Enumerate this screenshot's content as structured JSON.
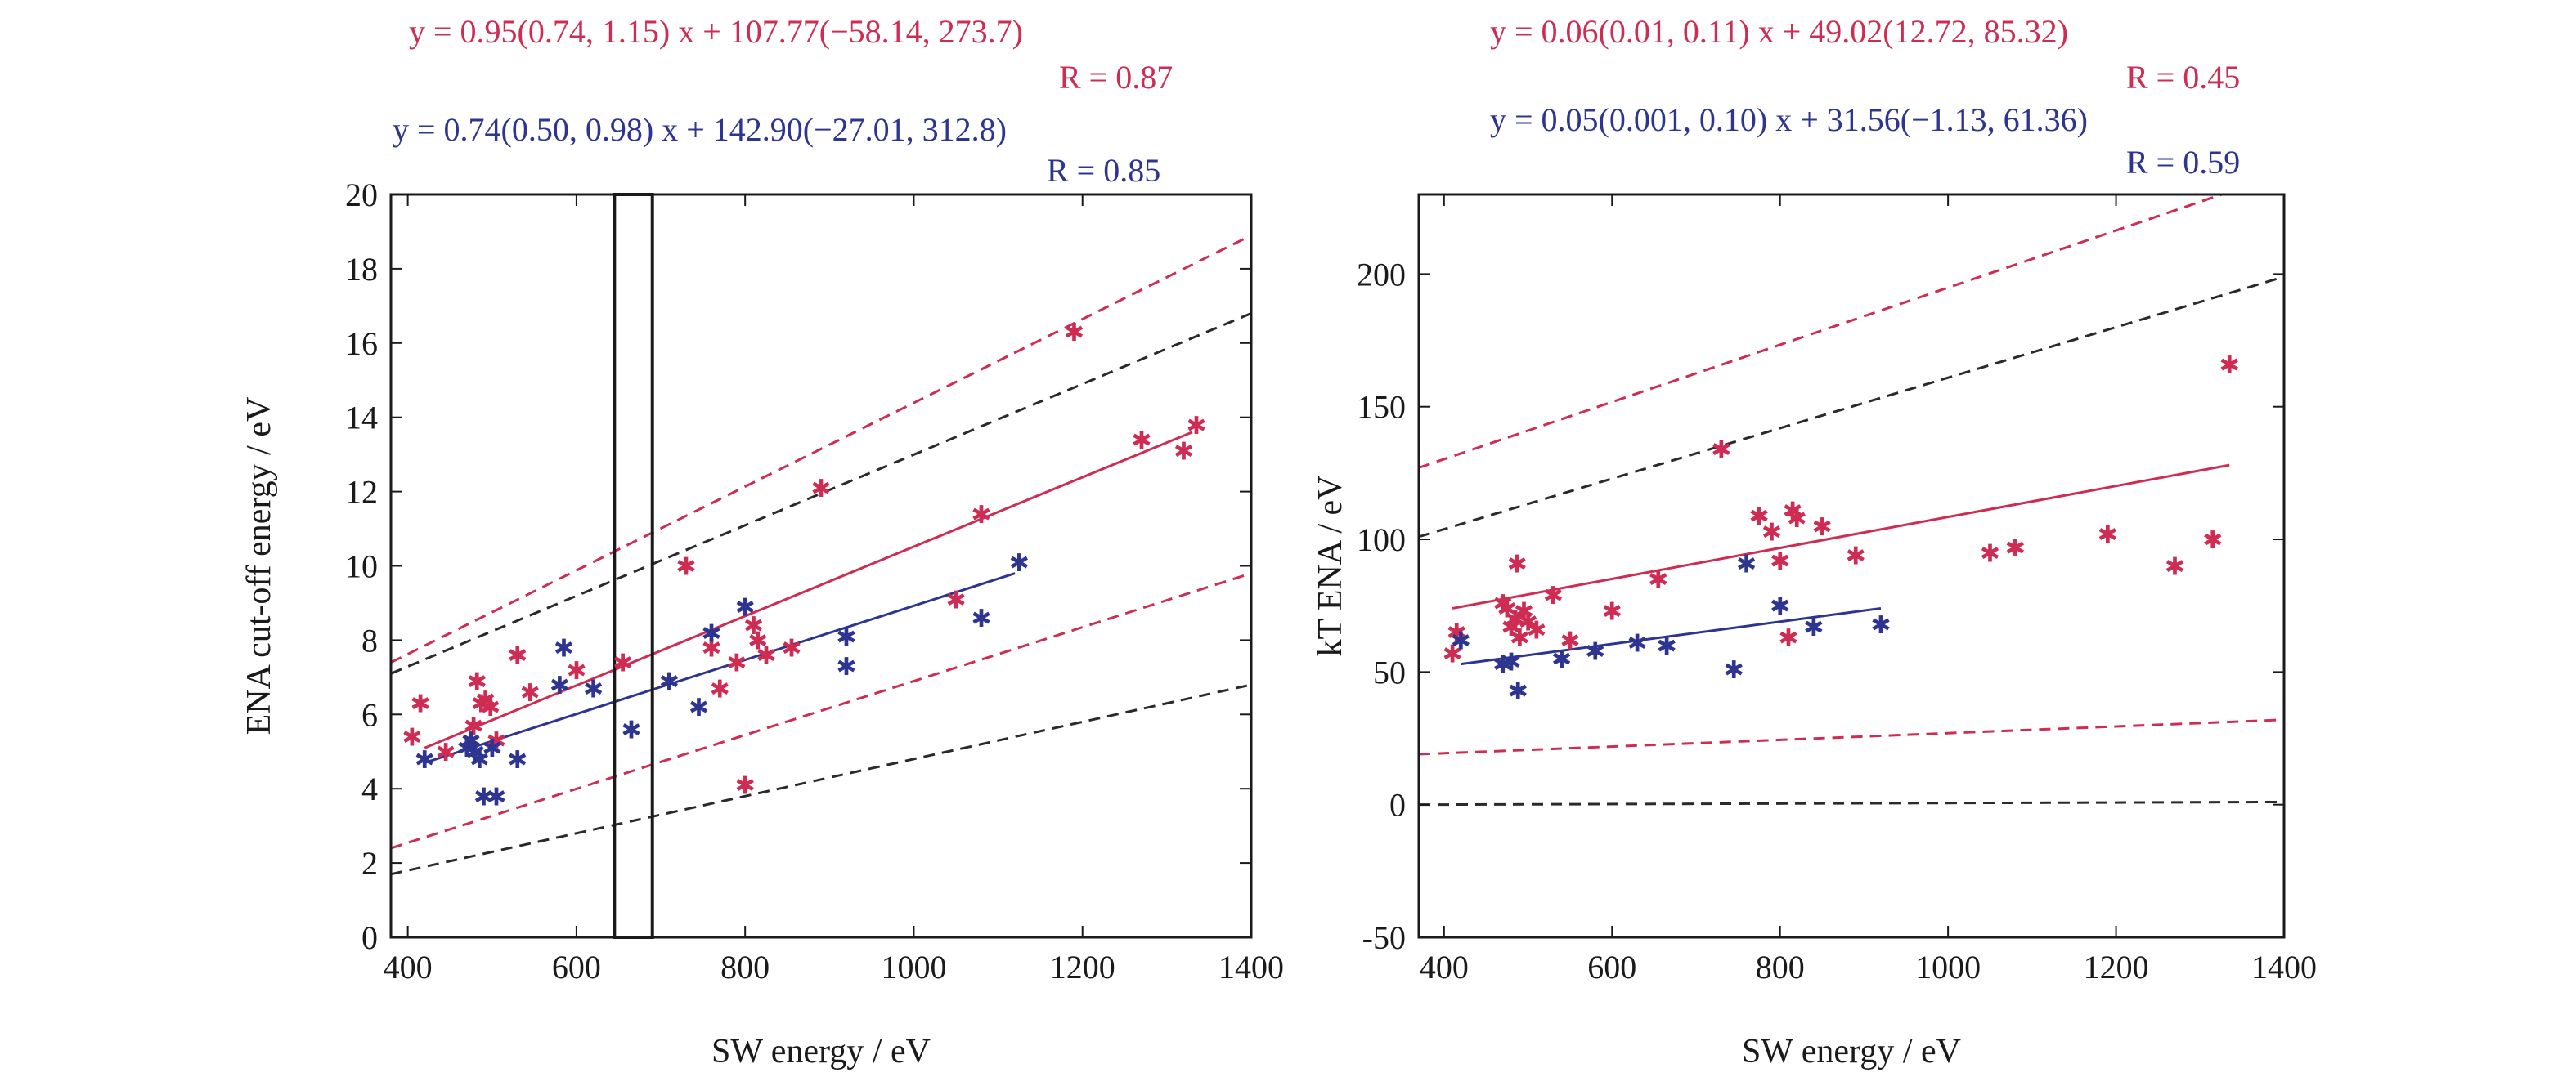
{
  "colors": {
    "red": "#cf2c53",
    "blue": "#2e3590",
    "black": "#2a2a2a",
    "axis": "#1a1a1a"
  },
  "chart_data": [
    {
      "type": "scatter",
      "xlabel": "SW energy / eV",
      "ylabel": "ENA cut-off energy / eV",
      "xlim": [
        380,
        1400
      ],
      "ylim": [
        0,
        20
      ],
      "xticks": [
        400,
        600,
        800,
        1000,
        1200,
        1400
      ],
      "yticks": [
        0,
        2,
        4,
        6,
        8,
        10,
        12,
        14,
        16,
        18,
        20
      ],
      "fit_red": {
        "text": "y = 0.95(0.74, 1.15) x + 107.77(−58.14, 273.7)",
        "r": "R = 0.87",
        "line": {
          "x": [
            420,
            1330
          ],
          "y": [
            5.1,
            13.6
          ]
        },
        "bound_lower": {
          "x": [
            380,
            1400
          ],
          "y": [
            2.4,
            9.8
          ]
        },
        "bound_upper": {
          "x": [
            380,
            1400
          ],
          "y": [
            7.4,
            18.9
          ]
        }
      },
      "fit_blue": {
        "text": "y = 0.74(0.50, 0.98) x + 142.90(−27.01, 312.8)",
        "r": "R = 0.85",
        "line": {
          "x": [
            420,
            1120
          ],
          "y": [
            4.7,
            9.8
          ]
        },
        "bound_lower": {
          "x": [
            380,
            1400
          ],
          "y": [
            1.7,
            6.8
          ]
        },
        "bound_upper": {
          "x": [
            380,
            1400
          ],
          "y": [
            7.1,
            16.8
          ]
        }
      },
      "highlight_box": {
        "x": [
          645,
          690
        ],
        "y": [
          0,
          20
        ]
      },
      "points_red": {
        "x": [
          405,
          415,
          445,
          478,
          482,
          487,
          492,
          498,
          505,
          530,
          545,
          600,
          655,
          730,
          760,
          770,
          790,
          800,
          810,
          815,
          825,
          855,
          890,
          1050,
          1080,
          1190,
          1270,
          1320,
          1335
        ],
        "y": [
          5.4,
          6.3,
          5.0,
          5.7,
          6.9,
          6.3,
          6.4,
          6.2,
          5.3,
          7.6,
          6.6,
          7.2,
          7.4,
          10.0,
          7.8,
          6.7,
          7.4,
          4.1,
          8.4,
          8.0,
          7.6,
          7.8,
          12.1,
          9.1,
          11.4,
          16.3,
          13.4,
          13.1,
          13.8
        ]
      },
      "points_blue": {
        "x": [
          420,
          470,
          475,
          480,
          485,
          490,
          500,
          505,
          530,
          580,
          585,
          620,
          665,
          710,
          745,
          760,
          800,
          920,
          920,
          1080,
          1125
        ],
        "y": [
          4.8,
          5.1,
          5.3,
          5.0,
          4.8,
          3.8,
          5.1,
          3.8,
          4.8,
          6.8,
          7.8,
          6.7,
          5.6,
          6.9,
          6.2,
          8.2,
          8.9,
          8.1,
          7.3,
          8.6,
          10.1
        ]
      }
    },
    {
      "type": "scatter",
      "xlabel": "SW energy / eV",
      "ylabel": "kT ENA / eV",
      "xlim": [
        370,
        1400
      ],
      "ylim": [
        -50,
        230
      ],
      "xticks": [
        400,
        600,
        800,
        1000,
        1200,
        1400
      ],
      "yticks": [
        -50,
        0,
        50,
        100,
        150,
        200
      ],
      "fit_red": {
        "text": "y = 0.06(0.01, 0.11) x + 49.02(12.72, 85.32)",
        "r": "R = 0.45",
        "line": {
          "x": [
            410,
            1335
          ],
          "y": [
            74,
            128
          ]
        },
        "bound_lower": {
          "x": [
            370,
            1400
          ],
          "y": [
            19,
            32
          ]
        },
        "bound_upper": {
          "x": [
            370,
            1400
          ],
          "y": [
            127,
            238
          ]
        }
      },
      "fit_blue": {
        "text": "y = 0.05(0.001, 0.10) x + 31.56(−1.13, 61.36)",
        "r": "R = 0.59",
        "line": {
          "x": [
            420,
            920
          ],
          "y": [
            53,
            74
          ]
        },
        "bound_lower": {
          "x": [
            370,
            1400
          ],
          "y": [
            0,
            1
          ]
        },
        "bound_upper": {
          "x": [
            370,
            1400
          ],
          "y": [
            101,
            199
          ]
        }
      },
      "points_red": {
        "x": [
          410,
          415,
          470,
          475,
          480,
          485,
          487,
          490,
          495,
          500,
          510,
          530,
          550,
          600,
          655,
          730,
          775,
          790,
          800,
          810,
          815,
          820,
          850,
          890,
          1050,
          1080,
          1190,
          1270,
          1315,
          1335
        ],
        "y": [
          57,
          65,
          76,
          74,
          67,
          70,
          91,
          63,
          73,
          69,
          66,
          79,
          62,
          73,
          85,
          134,
          109,
          103,
          92,
          63,
          111,
          108,
          105,
          94,
          95,
          97,
          102,
          90,
          100,
          166
        ]
      },
      "points_blue": {
        "x": [
          420,
          470,
          480,
          488,
          540,
          580,
          630,
          665,
          745,
          760,
          800,
          840,
          920
        ],
        "y": [
          62,
          53,
          54,
          43,
          55,
          58,
          61,
          60,
          51,
          91,
          75,
          67,
          68
        ]
      }
    }
  ]
}
